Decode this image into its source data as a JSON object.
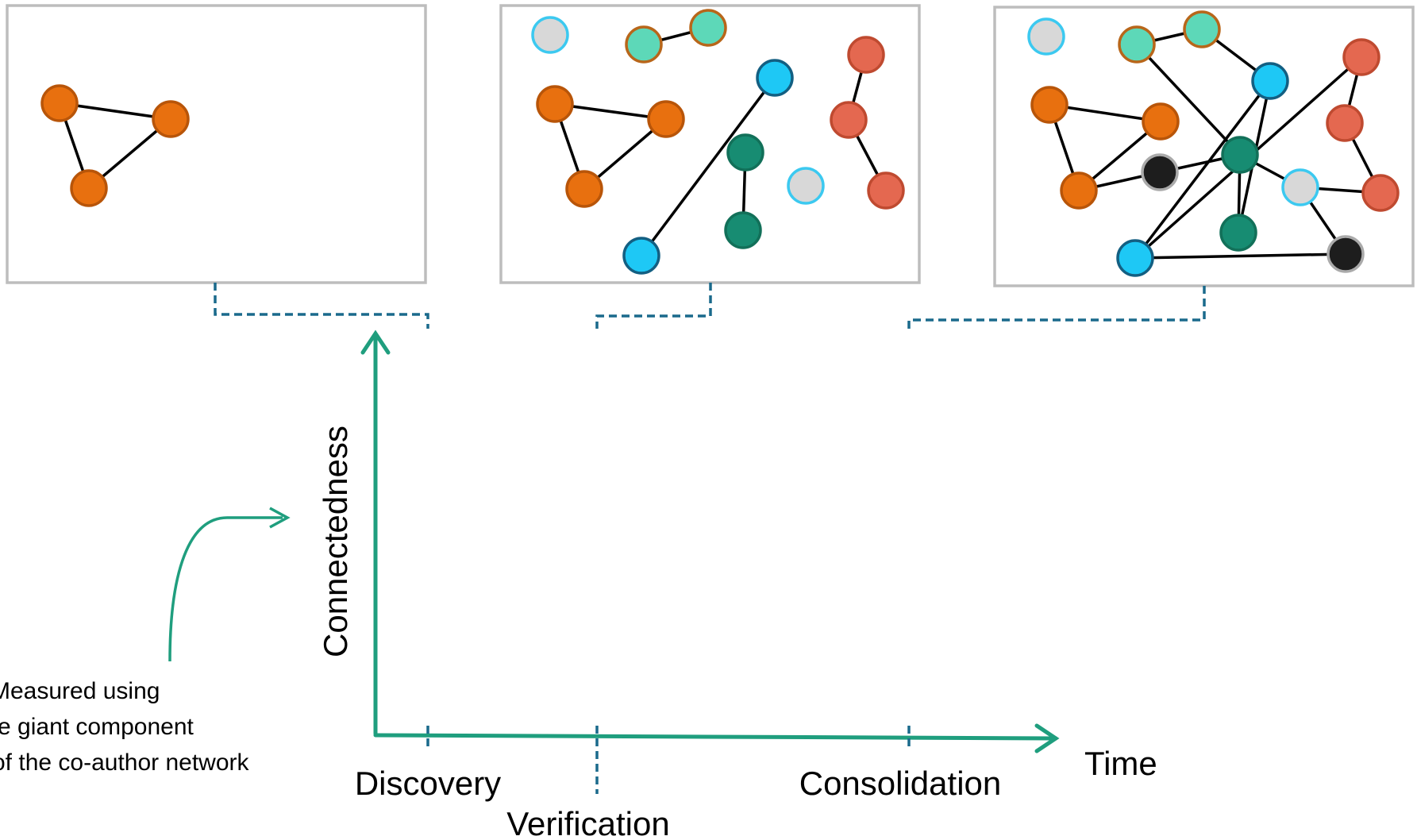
{
  "colors": {
    "frame": "#bdbdbd",
    "axis": "#1f9e7e",
    "bracket": "#1a6a8c",
    "edge": "#000000",
    "orange": "#e8700f",
    "orange_stroke": "#b85509",
    "mint": "#5dd8b8",
    "mint_stroke": "#b8661a",
    "blue": "#1ec8f5",
    "blue_stroke": "#135f82",
    "teal": "#178c72",
    "teal_stroke": "#127059",
    "salmon": "#e46850",
    "salmon_stroke": "#bf4a30",
    "grey": "#d8d8d8",
    "grey_stroke": "#3cc9f0",
    "black": "#1d1d1d",
    "black_stroke": "#aaaaaa"
  },
  "axes": {
    "y_label": "Connectedness",
    "x_label": "Time"
  },
  "phases": [
    {
      "key": "discovery",
      "label": "Discovery"
    },
    {
      "key": "verification",
      "label": "Verification"
    },
    {
      "key": "consolidation",
      "label": "Consolidation"
    }
  ],
  "note": {
    "lines": [
      "Measured using",
      "the giant component",
      "of the co-author network"
    ]
  },
  "panels": [
    {
      "key": "discovery",
      "nodes": [
        {
          "id": "o1",
          "type": "orange"
        },
        {
          "id": "o2",
          "type": "orange"
        },
        {
          "id": "o3",
          "type": "orange"
        }
      ],
      "edges": [
        [
          "o1",
          "o2"
        ],
        [
          "o1",
          "o3"
        ],
        [
          "o2",
          "o3"
        ]
      ]
    },
    {
      "key": "verification",
      "nodes": [
        {
          "id": "g1",
          "type": "grey"
        },
        {
          "id": "m1",
          "type": "mint"
        },
        {
          "id": "m2",
          "type": "mint"
        },
        {
          "id": "o1",
          "type": "orange"
        },
        {
          "id": "o2",
          "type": "orange"
        },
        {
          "id": "o3",
          "type": "orange"
        },
        {
          "id": "b1",
          "type": "blue"
        },
        {
          "id": "b2",
          "type": "blue"
        },
        {
          "id": "t1",
          "type": "teal"
        },
        {
          "id": "t2",
          "type": "teal"
        },
        {
          "id": "g2",
          "type": "grey"
        },
        {
          "id": "s1",
          "type": "salmon"
        },
        {
          "id": "s2",
          "type": "salmon"
        },
        {
          "id": "s3",
          "type": "salmon"
        }
      ],
      "edges": [
        [
          "m1",
          "m2"
        ],
        [
          "o1",
          "o2"
        ],
        [
          "o1",
          "o3"
        ],
        [
          "o2",
          "o3"
        ],
        [
          "b1",
          "b2"
        ],
        [
          "t1",
          "t2"
        ],
        [
          "s1",
          "s2"
        ],
        [
          "s2",
          "s3"
        ]
      ]
    },
    {
      "key": "consolidation",
      "nodes": [
        {
          "id": "g1",
          "type": "grey"
        },
        {
          "id": "m1",
          "type": "mint"
        },
        {
          "id": "m2",
          "type": "mint"
        },
        {
          "id": "o1",
          "type": "orange"
        },
        {
          "id": "o2",
          "type": "orange"
        },
        {
          "id": "o3",
          "type": "orange"
        },
        {
          "id": "b1",
          "type": "blue"
        },
        {
          "id": "b2",
          "type": "blue"
        },
        {
          "id": "t1",
          "type": "teal"
        },
        {
          "id": "t2",
          "type": "teal"
        },
        {
          "id": "k1",
          "type": "black"
        },
        {
          "id": "k2",
          "type": "black"
        },
        {
          "id": "g2",
          "type": "grey"
        },
        {
          "id": "s1",
          "type": "salmon"
        },
        {
          "id": "s2",
          "type": "salmon"
        },
        {
          "id": "s3",
          "type": "salmon"
        }
      ],
      "edges": [
        [
          "m1",
          "m2"
        ],
        [
          "m2",
          "b1"
        ],
        [
          "m1",
          "t1"
        ],
        [
          "o1",
          "o2"
        ],
        [
          "o1",
          "o3"
        ],
        [
          "o2",
          "o3"
        ],
        [
          "o3",
          "k1"
        ],
        [
          "k1",
          "t1"
        ],
        [
          "b1",
          "t2"
        ],
        [
          "b1",
          "b2"
        ],
        [
          "b2",
          "s1"
        ],
        [
          "t1",
          "t2"
        ],
        [
          "t1",
          "g2"
        ],
        [
          "g2",
          "s3"
        ],
        [
          "g2",
          "k2"
        ],
        [
          "s1",
          "s2"
        ],
        [
          "s2",
          "s3"
        ],
        [
          "b2",
          "k2"
        ]
      ]
    }
  ]
}
